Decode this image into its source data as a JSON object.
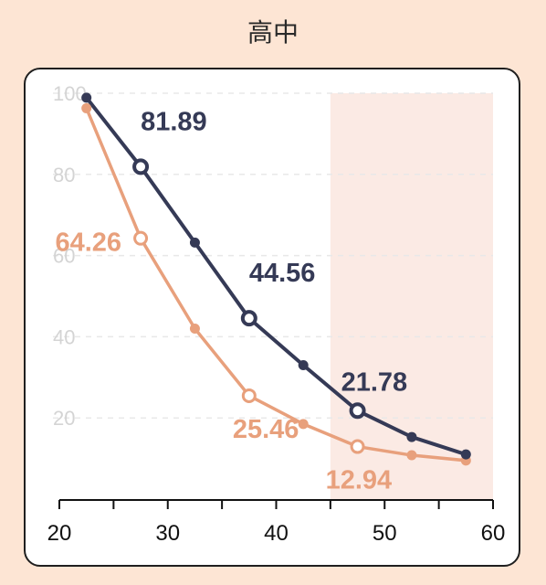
{
  "title": "高中",
  "colors": {
    "background": "#fde5d4",
    "series_dark": "#353a56",
    "series_light": "#e8a07c",
    "highlight": "#fbeae4",
    "ytick": "#d4d4d4"
  },
  "chart_data": {
    "type": "line",
    "title": "高中",
    "xlabel": "",
    "ylabel": "",
    "xlim": [
      20,
      60
    ],
    "ylim": [
      0,
      100
    ],
    "x_ticks": [
      20,
      30,
      40,
      50,
      60
    ],
    "x_minor_ticks": [
      25,
      35,
      45,
      55
    ],
    "y_ticks": [
      20,
      40,
      60,
      80,
      100
    ],
    "grid": "horizontal-dashed",
    "highlight_region": {
      "x_from": 45,
      "x_to": 60
    },
    "series": [
      {
        "color": "#353a56",
        "x": [
          22.5,
          27.5,
          32.5,
          37.5,
          42.5,
          47.5,
          52.5,
          57.5
        ],
        "values": [
          98.9,
          81.89,
          63.2,
          44.56,
          33.0,
          21.78,
          15.3,
          11.0
        ],
        "hollow_indices": [
          1,
          3,
          5
        ]
      },
      {
        "color": "#e8a07c",
        "x": [
          22.5,
          27.5,
          32.5,
          37.5,
          42.5,
          47.5,
          52.5,
          57.5
        ],
        "values": [
          96.3,
          64.26,
          42.0,
          25.46,
          18.5,
          12.94,
          10.8,
          9.5
        ],
        "hollow_indices": [
          1,
          3,
          5
        ]
      }
    ],
    "annotations": [
      {
        "text": "81.89",
        "series": 0,
        "x": 27.5,
        "y": 81.89,
        "position": "above-right"
      },
      {
        "text": "44.56",
        "series": 0,
        "x": 37.5,
        "y": 44.56,
        "position": "above-right"
      },
      {
        "text": "21.78",
        "series": 0,
        "x": 47.5,
        "y": 21.78,
        "position": "above-left"
      },
      {
        "text": "64.26",
        "series": 1,
        "x": 27.5,
        "y": 64.26,
        "position": "left"
      },
      {
        "text": "25.46",
        "series": 1,
        "x": 37.5,
        "y": 25.46,
        "position": "below-right"
      },
      {
        "text": "12.94",
        "series": 1,
        "x": 47.5,
        "y": 12.94,
        "position": "below"
      }
    ]
  }
}
